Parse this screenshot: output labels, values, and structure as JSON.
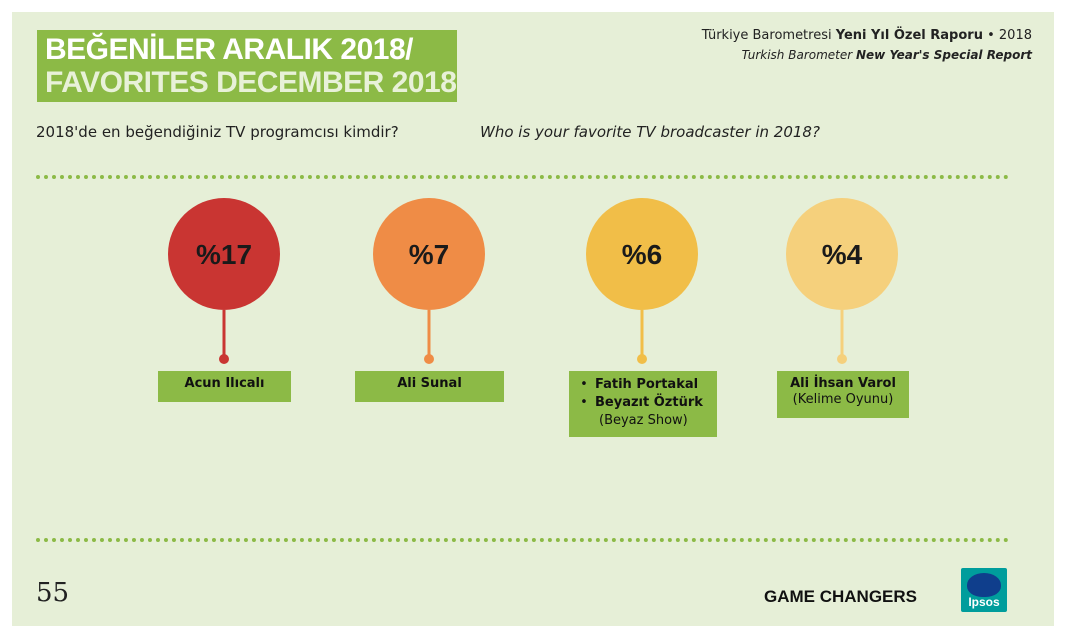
{
  "header": {
    "title_line1": "BEĞENİLER ARALIK 2018/",
    "title_line2": "FAVORITES DECEMBER 2018",
    "report_tr_pre": "Türkiye Barometresi ",
    "report_tr_bold": "Yeni Yıl Özel Raporu",
    "report_tr_post": " • 2018",
    "report_en_pre": "Turkish Barometer ",
    "report_en_bold": "New Year's Special Report"
  },
  "question": {
    "tr": "2018'de en beğendiğiniz TV programcısı kimdir?",
    "en": "Who is your favorite TV broadcaster in 2018?"
  },
  "chart_data": {
    "type": "bubble",
    "categories": [
      "Acun Ilıcalı",
      "Ali Sunal",
      "Fatih Portakal / Beyazıt Öztürk (Beyaz Show)",
      "Ali İhsan Varol (Kelime Oyunu)"
    ],
    "values": [
      17,
      7,
      6,
      4
    ],
    "value_labels": [
      "%17",
      "%7",
      "%6",
      "%4"
    ],
    "colors": [
      "#c93532",
      "#ef8c46",
      "#f1be48",
      "#f5d07c"
    ]
  },
  "labels": [
    {
      "names": [
        "Acun  Ilıcalı"
      ],
      "sub": ""
    },
    {
      "names": [
        "Ali Sunal"
      ],
      "sub": ""
    },
    {
      "names": [
        "Fatih Portakal",
        "Beyazıt Öztürk"
      ],
      "sub": "(Beyaz Show)"
    },
    {
      "names": [
        "Ali İhsan Varol"
      ],
      "sub": "(Kelime Oyunu)"
    }
  ],
  "footer": {
    "page_number": "55",
    "brand_text": "GAME CHANGERS",
    "logo_text": "Ipsos"
  }
}
